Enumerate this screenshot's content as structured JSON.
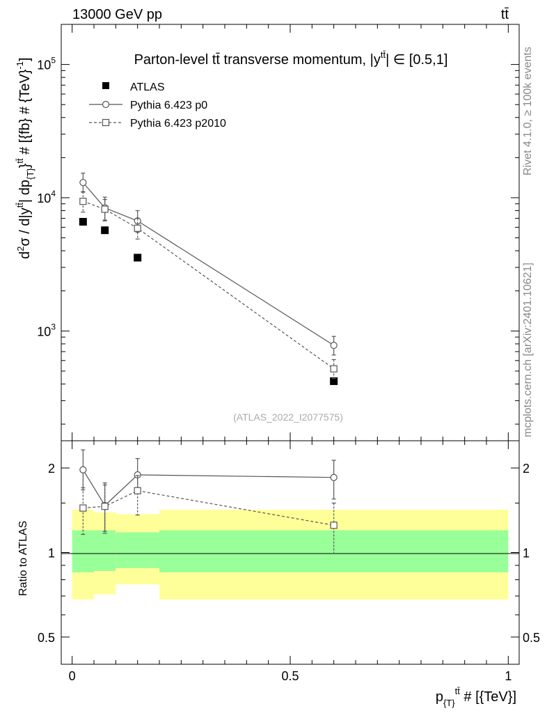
{
  "header": {
    "left": "13000 GeV pp",
    "right": "tt̄"
  },
  "side_text": {
    "rivet": "Rivet 4.1.0, ≥ 100k events",
    "mcplots": "mcplots.cern.ch [arXiv:2401.10621]"
  },
  "chart_data": {
    "type": "scatter",
    "title": "Parton-level tt̄ transverse momentum, |y^{tt̄}| ∈ [0.5,1]",
    "title_parts": {
      "prefix": "Parton-level ",
      "tt": "tt̄",
      "middle": " transverse momentum, |y",
      "sup": "tt̄",
      "suffix": "| ∈ [0.5,1]"
    },
    "analysis_label": "(ATLAS_2022_I2077575)",
    "xlabel": "p_{T}^{tt̄} # [{TeV}]",
    "ylabel": "d²σ / d|y^{tt̄}| dp_{T}^{tt̄} # [{fb} # {TeV}⁻¹]",
    "xlabel_parts": {
      "main": "p",
      "sub": "{T}",
      "sup": "tt̄",
      "rest": " # [{TeV}]"
    },
    "ylabel_parts": {
      "a": "d",
      "b": "2",
      "c": "σ / d|y",
      "d": "tt̄",
      "e": "| dp",
      "f": "{T}",
      "g": "}",
      "h": "tt̄",
      "i": " # [{fb} # {TeV}",
      "j": "-1",
      "k": "]"
    },
    "yscale": "log",
    "ylim": [
      150,
      200000
    ],
    "xlim": [
      -0.025,
      1.025
    ],
    "x_ticks": [
      0,
      0.5,
      1
    ],
    "x_tick_labels": [
      "0",
      "0.5",
      "1"
    ],
    "y_ticks": [
      1000,
      10000,
      100000
    ],
    "y_tick_labels": [
      {
        "base": "10",
        "exp": "3"
      },
      {
        "base": "10",
        "exp": "4"
      },
      {
        "base": "10",
        "exp": "5"
      }
    ],
    "legend_position": "top-left",
    "series": [
      {
        "name": "ATLAS",
        "marker": "filled-square",
        "line": "none",
        "color": "#000000",
        "x": [
          0.025,
          0.075,
          0.15,
          0.6
        ],
        "y": [
          6600,
          5700,
          3550,
          420
        ],
        "yerr": [
          0,
          0,
          0,
          25
        ]
      },
      {
        "name": "Pythia 6.423 p0",
        "marker": "open-circle",
        "line": "solid",
        "color": "#555555",
        "x": [
          0.025,
          0.075,
          0.15,
          0.6
        ],
        "y": [
          13000,
          8400,
          6700,
          780
        ],
        "yerr_up": [
          2300,
          1700,
          1300,
          130
        ],
        "yerr_dn": [
          2000,
          1600,
          1200,
          120
        ]
      },
      {
        "name": "Pythia 6.423 p2010",
        "marker": "open-square",
        "line": "dashed",
        "color": "#555555",
        "x": [
          0.025,
          0.075,
          0.15,
          0.6
        ],
        "y": [
          9400,
          8200,
          5900,
          520
        ],
        "yerr_up": [
          1700,
          1500,
          1100,
          90
        ],
        "yerr_dn": [
          1600,
          1500,
          1000,
          80
        ]
      }
    ],
    "ratio": {
      "ylabel": "Ratio to ATLAS",
      "yscale": "log",
      "ylim": [
        0.4,
        2.5
      ],
      "y_ticks": [
        0.5,
        1,
        2
      ],
      "y_tick_labels": [
        "0.5",
        "1",
        "2"
      ],
      "bins": [
        0,
        0.05,
        0.1,
        0.2,
        1.0
      ],
      "band_yellow": [
        [
          0.68,
          1.42
        ],
        [
          0.71,
          1.39
        ],
        [
          0.77,
          1.37
        ],
        [
          0.68,
          1.42
        ]
      ],
      "band_green": [
        [
          0.85,
          1.2
        ],
        [
          0.86,
          1.2
        ],
        [
          0.88,
          1.18
        ],
        [
          0.85,
          1.2
        ]
      ],
      "band_yellow_color": "#ffff99",
      "band_green_color": "#99ff99",
      "series": [
        {
          "name": "Pythia 6.423 p0",
          "x": [
            0.025,
            0.075,
            0.15,
            0.6
          ],
          "y": [
            1.97,
            1.47,
            1.89,
            1.85
          ],
          "yerr_up": [
            0.35,
            0.3,
            0.27,
            0.28
          ],
          "yerr_dn": [
            0.3,
            0.28,
            0.26,
            0.3
          ]
        },
        {
          "name": "Pythia 6.423 p2010",
          "x": [
            0.025,
            0.075,
            0.15,
            0.6
          ],
          "y": [
            1.44,
            1.46,
            1.66,
            1.25
          ],
          "yerr_up": [
            0.26,
            0.28,
            0.22,
            0.25
          ],
          "yerr_dn": [
            0.28,
            0.29,
            0.3,
            0.26
          ]
        }
      ]
    }
  }
}
